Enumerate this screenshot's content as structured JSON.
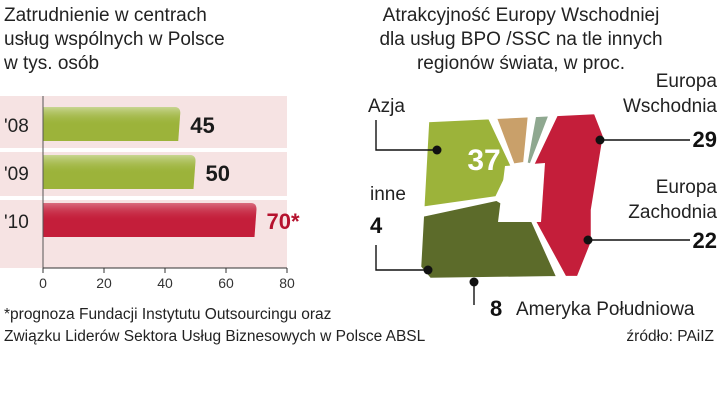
{
  "chart_data": [
    {
      "type": "bar",
      "orientation": "horizontal",
      "title": "Zatrudnienie w centrach usług wspólnych w Polsce w tys. osób",
      "title_lines": [
        "Zatrudnienie w centrach",
        "usług wspólnych w Polsce",
        "w tys. osób"
      ],
      "categories": [
        "'08",
        "'09",
        "'10"
      ],
      "values": [
        45,
        50,
        70
      ],
      "value_labels": [
        "45",
        "50",
        "70*"
      ],
      "highlight_index": 2,
      "xlim": [
        0,
        80
      ],
      "xticks": [
        "0",
        "20",
        "40",
        "60",
        "80"
      ],
      "colors": {
        "bar": "#9cb33a",
        "bar_highlight": "#c41e3a",
        "plot_bg": "#f6e3e3",
        "highlight_label": "#b5122e"
      },
      "footnote_lines": [
        "*prognoza Fundacji Instytutu Outsourcingu oraz",
        "Związku Liderów Sektora Usług Biznesowych w Polsce ABSL"
      ]
    },
    {
      "type": "pie",
      "title": "Atrakcyjność Europy Wschodniej dla usług BPO /SSC na tle innych regionów świata, w proc.",
      "title_lines": [
        "Atrakcyjność Europy Wschodniej",
        "dla usług BPO /SSC na tle innych",
        "regionów świata, w proc."
      ],
      "slices": [
        {
          "label": "Azja",
          "value": 37,
          "color": "#c41e3a"
        },
        {
          "label": "Europa Wschodnia",
          "value": 29,
          "color": "#5c6b2a"
        },
        {
          "label": "Europa Zachodnia",
          "value": 22,
          "color": "#9cb33a"
        },
        {
          "label": "Ameryka Południowa",
          "value": 8,
          "color": "#c9a06a"
        },
        {
          "label": "inne",
          "value": 4,
          "color": "#8fa890"
        }
      ],
      "label_lines": {
        "ew": [
          "Europa",
          "Wschodnia"
        ],
        "ez": [
          "Europa",
          "Zachodnia"
        ]
      },
      "source": "źródło: PAiIZ"
    }
  ]
}
